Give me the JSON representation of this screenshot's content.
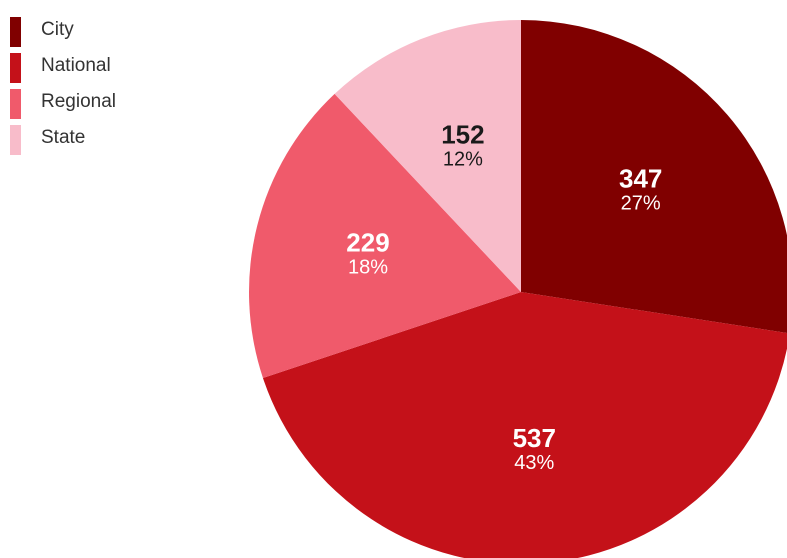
{
  "chart_data": {
    "type": "pie",
    "title": "",
    "legend_position": "top-left",
    "start_angle_deg": 0,
    "direction": "clockwise",
    "slices": [
      {
        "label": "City",
        "value": 347,
        "percent_label": "27%",
        "color": "#800000",
        "text_color": "#ffffff"
      },
      {
        "label": "National",
        "value": 537,
        "percent_label": "43%",
        "color": "#c41119",
        "text_color": "#ffffff"
      },
      {
        "label": "Regional",
        "value": 229,
        "percent_label": "18%",
        "color": "#f05a6b",
        "text_color": "#ffffff"
      },
      {
        "label": "State",
        "value": 152,
        "percent_label": "12%",
        "color": "#f8bcca",
        "text_color": "#1a1a1a"
      }
    ]
  }
}
